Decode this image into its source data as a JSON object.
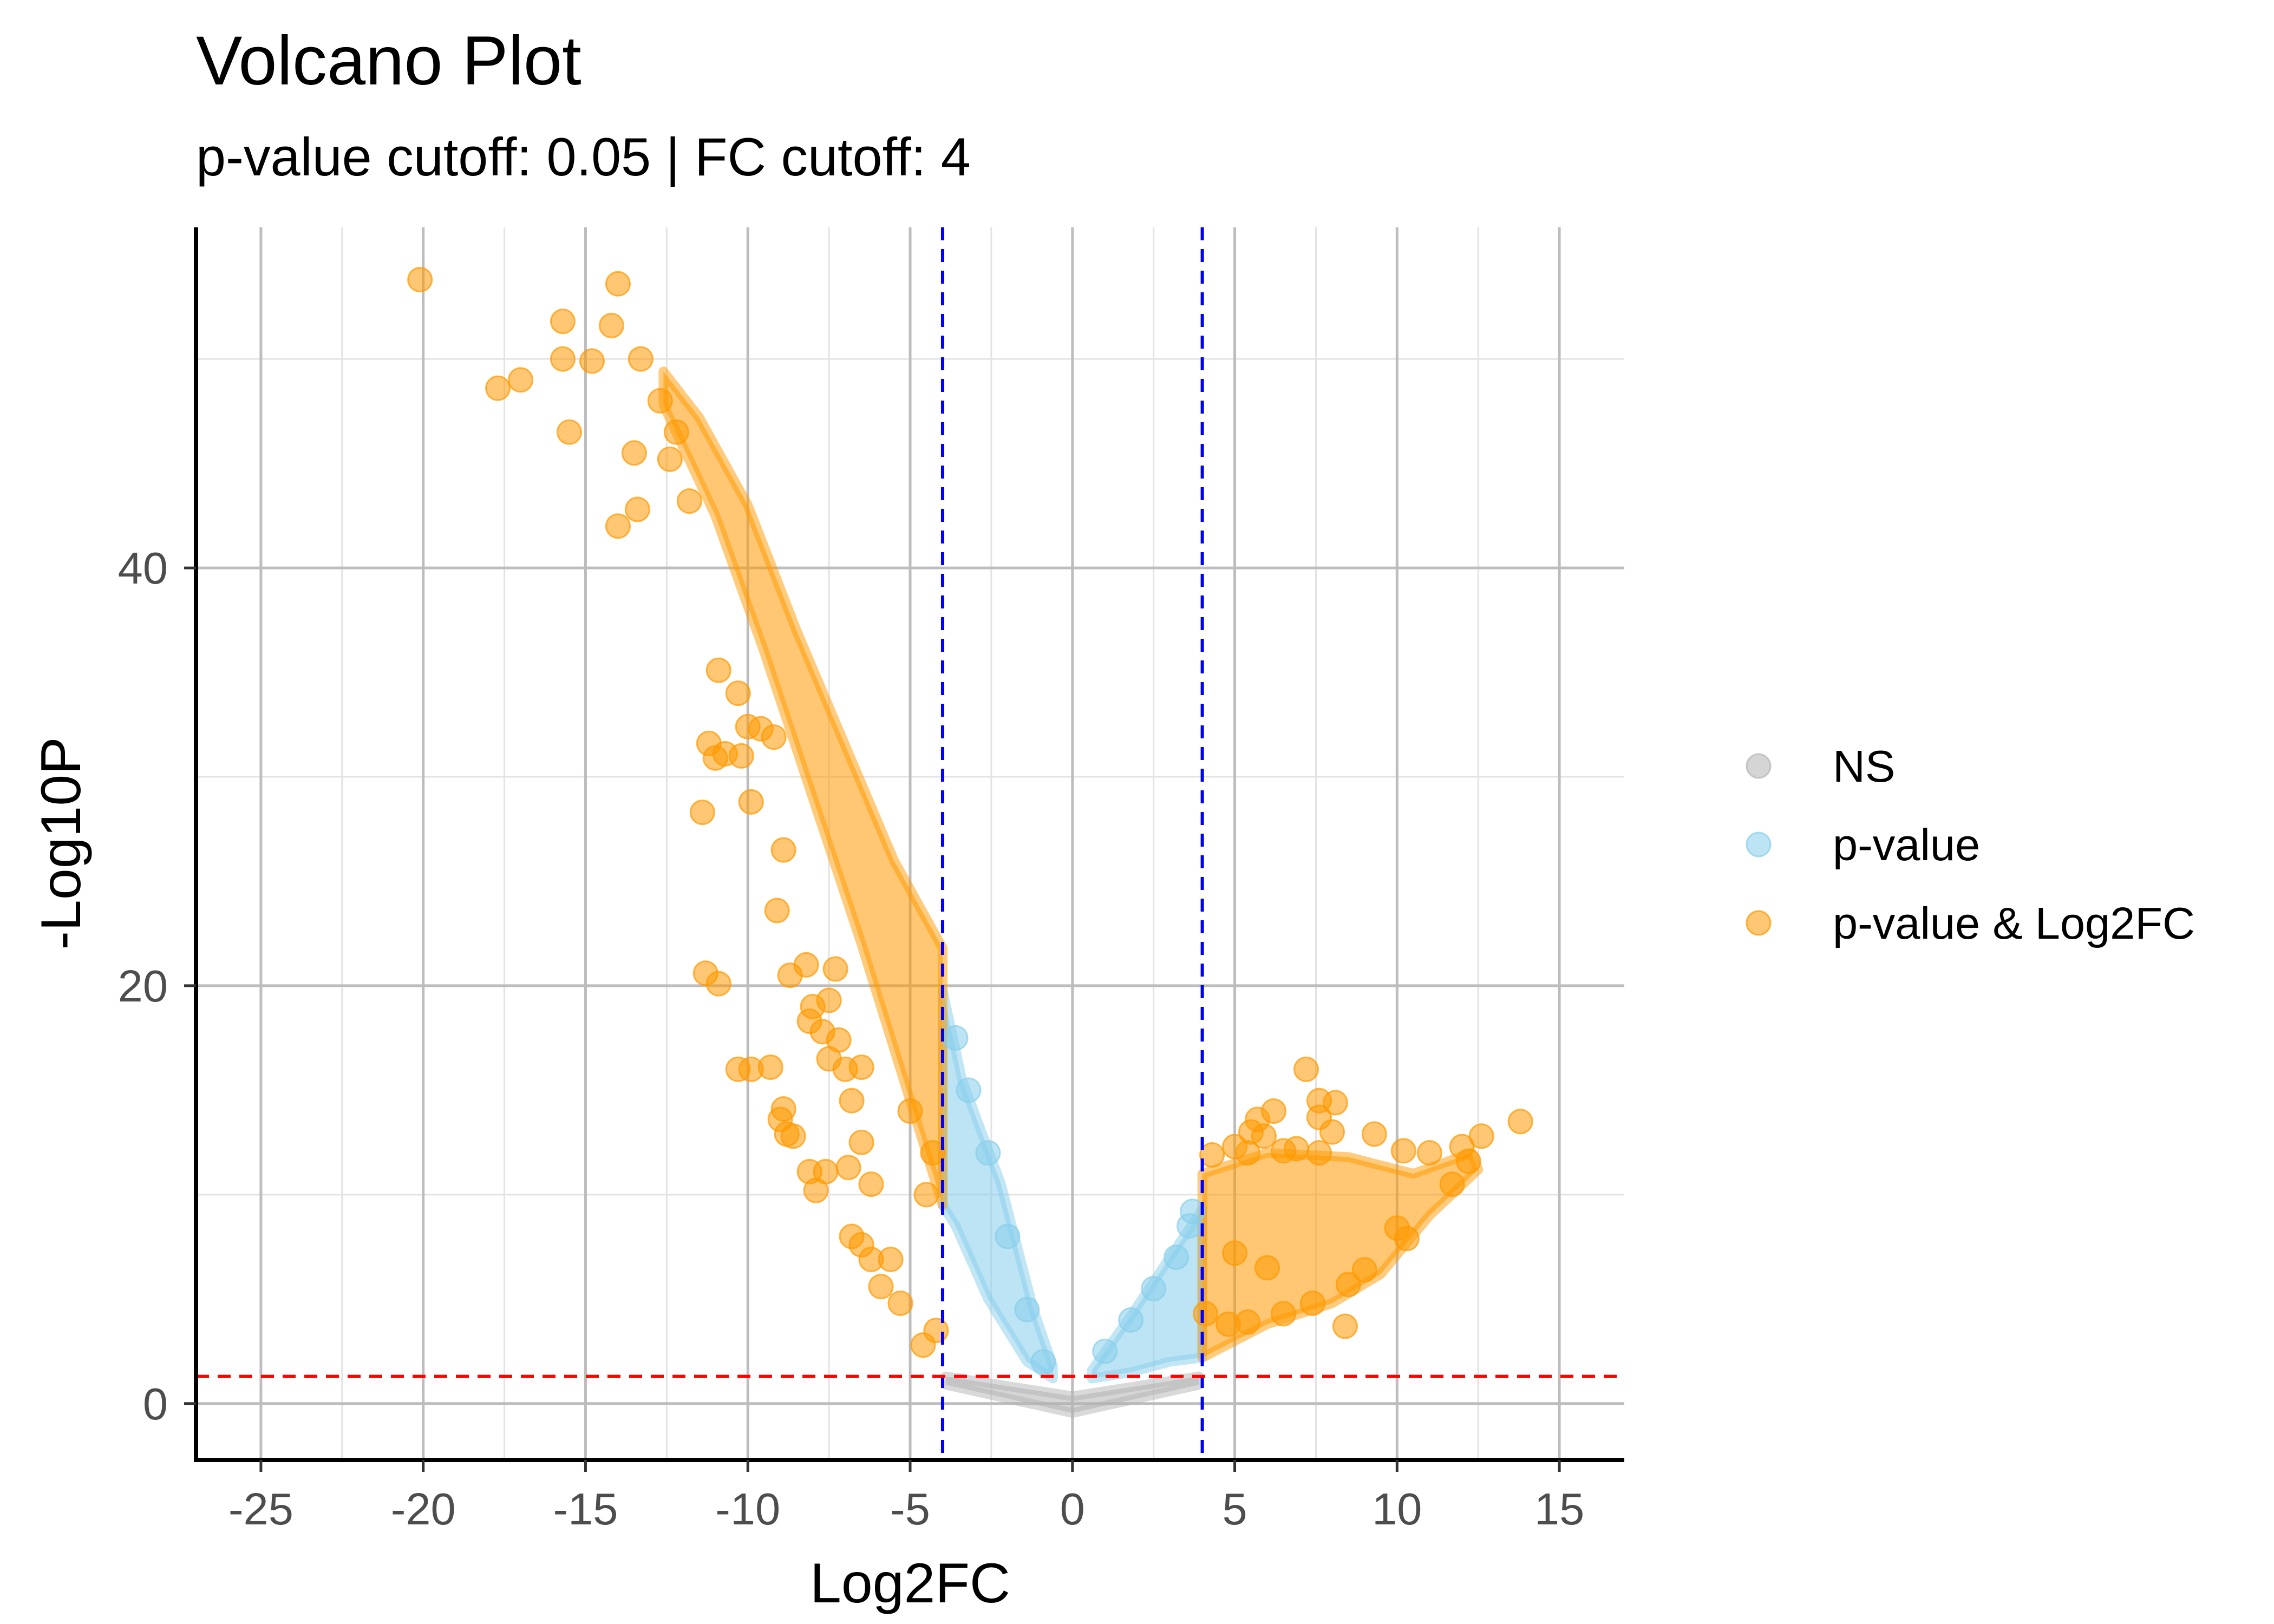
{
  "chart_data": {
    "type": "scatter",
    "title": "Volcano Plot",
    "subtitle": "p-value cutoff: 0.05 | FC cutoff: 4",
    "xlabel": "Log2FC",
    "ylabel": "-Log10P",
    "xlim": [
      -27,
      17
    ],
    "ylim": [
      -2.7,
      56.3
    ],
    "x_ticks": [
      -25,
      -20,
      -15,
      -10,
      -5,
      0,
      5,
      10,
      15
    ],
    "x_tick_labels": [
      "-25",
      "-20",
      "-15",
      "-10",
      "-5",
      "0",
      "5",
      "10",
      "15"
    ],
    "y_ticks": [
      0,
      20,
      40
    ],
    "y_tick_labels": [
      "0",
      "20",
      "40"
    ],
    "grid": true,
    "legend_position": "right",
    "cutoffs": {
      "log2fc": [
        -4,
        4
      ],
      "neg_log10_p": 1.3,
      "vline_color": "#0000ff",
      "hline_color": "#ff0000"
    },
    "series": [
      {
        "name": "NS",
        "color": "#b3b3b3",
        "trend": {
          "x_range": [
            -3.9,
            3.9
          ],
          "y_left": 1.3,
          "y_center": 0,
          "y_right": 1.3
        },
        "points": []
      },
      {
        "name": "p-value",
        "color": "#87ceeb",
        "trend": {
          "x_range_left": [
            -4.0,
            -0.6
          ],
          "x_range_right": [
            0.6,
            4.0
          ],
          "y_at_neg4": 19,
          "y_at_pos4": 9
        },
        "points": [
          [
            -3.6,
            17.5
          ],
          [
            -3.2,
            15
          ],
          [
            -2.6,
            12
          ],
          [
            -2.0,
            8
          ],
          [
            -1.4,
            4.5
          ],
          [
            -0.9,
            2
          ],
          [
            1.0,
            2.5
          ],
          [
            1.8,
            4
          ],
          [
            2.5,
            5.5
          ],
          [
            3.2,
            7
          ],
          [
            3.6,
            8.5
          ],
          [
            3.7,
            9.2
          ]
        ]
      },
      {
        "name": "p-value & Log2FC",
        "color": "#ff9900",
        "trend": {
          "x_range_left": [
            -12.6,
            -4.0
          ],
          "x_range_right": [
            4.0,
            12.5
          ],
          "y_at_neg12_5": 49,
          "y_at_neg4": 21,
          "y_at_pos4": 3,
          "y_at_pos12_5": 12
        },
        "points": [
          [
            -20.1,
            53.8
          ],
          [
            -14.0,
            53.6
          ],
          [
            -15.7,
            51.8
          ],
          [
            -14.2,
            51.6
          ],
          [
            -15.7,
            50.0
          ],
          [
            -14.8,
            49.9
          ],
          [
            -13.3,
            50.0
          ],
          [
            -17.7,
            48.6
          ],
          [
            -17.0,
            49.0
          ],
          [
            -15.5,
            46.5
          ],
          [
            -13.5,
            45.5
          ],
          [
            -14.0,
            42.0
          ],
          [
            -13.4,
            42.8
          ],
          [
            -12.7,
            48.0
          ],
          [
            -12.2,
            46.5
          ],
          [
            -12.4,
            45.2
          ],
          [
            -11.8,
            43.2
          ],
          [
            -10.9,
            35.1
          ],
          [
            -10.3,
            34.0
          ],
          [
            -10.0,
            32.4
          ],
          [
            -9.6,
            32.3
          ],
          [
            -10.2,
            31.0
          ],
          [
            -9.2,
            31.9
          ],
          [
            -11.2,
            31.6
          ],
          [
            -11.0,
            30.9
          ],
          [
            -10.7,
            31.1
          ],
          [
            -9.9,
            28.8
          ],
          [
            -11.4,
            28.3
          ],
          [
            -8.9,
            26.5
          ],
          [
            -9.1,
            23.6
          ],
          [
            -8.7,
            20.5
          ],
          [
            -8.2,
            21.0
          ],
          [
            -7.3,
            20.8
          ],
          [
            -7.5,
            19.3
          ],
          [
            -11.3,
            20.6
          ],
          [
            -10.9,
            20.1
          ],
          [
            -8.0,
            19.0
          ],
          [
            -8.1,
            18.3
          ],
          [
            -7.7,
            17.8
          ],
          [
            -7.2,
            17.4
          ],
          [
            -7.5,
            16.5
          ],
          [
            -10.3,
            16.0
          ],
          [
            -9.9,
            16.0
          ],
          [
            -9.3,
            16.1
          ],
          [
            -7.0,
            16.0
          ],
          [
            -6.5,
            16.1
          ],
          [
            -8.9,
            14.1
          ],
          [
            -9.0,
            13.6
          ],
          [
            -8.8,
            12.9
          ],
          [
            -8.6,
            12.8
          ],
          [
            -6.8,
            14.5
          ],
          [
            -6.5,
            12.5
          ],
          [
            -8.1,
            11.1
          ],
          [
            -7.6,
            11.1
          ],
          [
            -6.9,
            11.3
          ],
          [
            -7.9,
            10.2
          ],
          [
            -6.2,
            10.5
          ],
          [
            -6.8,
            8.0
          ],
          [
            -6.5,
            7.6
          ],
          [
            -6.2,
            6.9
          ],
          [
            -5.6,
            6.9
          ],
          [
            -5.9,
            5.6
          ],
          [
            -5.3,
            4.8
          ],
          [
            -4.6,
            2.8
          ],
          [
            -4.2,
            3.5
          ],
          [
            -4.5,
            10.0
          ],
          [
            -4.3,
            12.0
          ],
          [
            -5.0,
            14.0
          ],
          [
            4.1,
            4.3
          ],
          [
            4.3,
            11.9
          ],
          [
            5.0,
            12.3
          ],
          [
            5.5,
            13.0
          ],
          [
            5.9,
            12.8
          ],
          [
            5.7,
            13.6
          ],
          [
            6.2,
            14.0
          ],
          [
            7.2,
            16.0
          ],
          [
            7.6,
            14.5
          ],
          [
            8.1,
            14.4
          ],
          [
            7.6,
            13.7
          ],
          [
            8.0,
            13.0
          ],
          [
            7.6,
            12.0
          ],
          [
            6.9,
            12.2
          ],
          [
            6.5,
            12.1
          ],
          [
            5.4,
            12.0
          ],
          [
            9.3,
            12.9
          ],
          [
            10.2,
            12.1
          ],
          [
            11.0,
            12.0
          ],
          [
            12.0,
            12.3
          ],
          [
            12.6,
            12.8
          ],
          [
            13.8,
            13.5
          ],
          [
            12.2,
            11.6
          ],
          [
            11.7,
            10.5
          ],
          [
            10.0,
            8.4
          ],
          [
            10.3,
            7.9
          ],
          [
            9.0,
            6.4
          ],
          [
            8.5,
            5.7
          ],
          [
            7.4,
            4.8
          ],
          [
            8.4,
            3.7
          ],
          [
            6.5,
            4.3
          ],
          [
            5.4,
            3.9
          ],
          [
            4.8,
            3.8
          ],
          [
            6.0,
            6.5
          ],
          [
            5.0,
            7.2
          ]
        ]
      }
    ]
  }
}
